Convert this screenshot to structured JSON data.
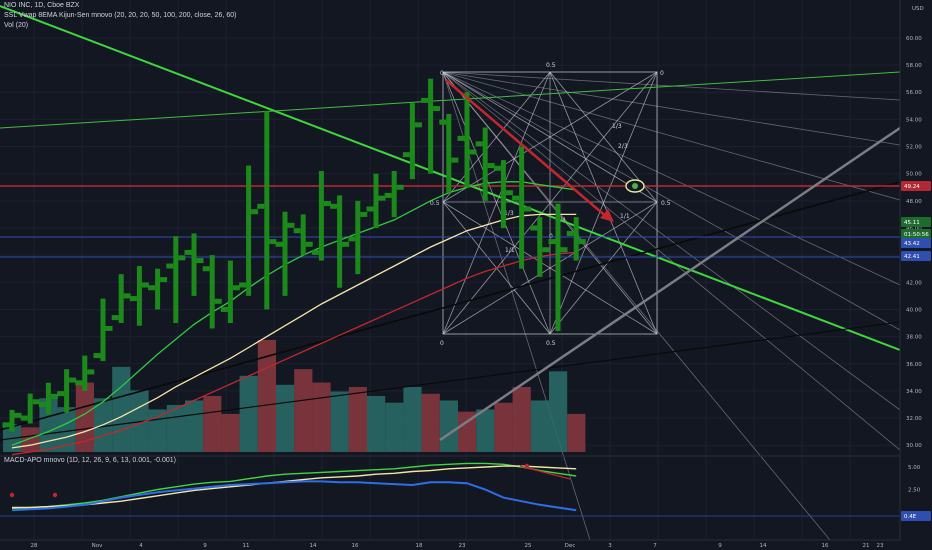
{
  "legends": {
    "symbol": "NIO INC, 1D, Cboe BZX",
    "indicators": "SSL Vwap 8EMA Kijun-Sen mnovo (20, 20, 20, 50, 100, 200, close, 26, 60)",
    "volume": "Vol (20)",
    "macd": "MACD-APO mnovo (1D, 12, 26, 9, 6, 13, 0.001, -0.001)"
  },
  "currency": "USD",
  "price_axis": {
    "range": [
      29.5,
      62.5
    ],
    "ticks": [
      "60.00",
      "58.00",
      "56.00",
      "54.00",
      "52.00",
      "50.00",
      "48.00",
      "46.00",
      "44.00",
      "42.00",
      "40.00",
      "38.00",
      "36.00",
      "34.00",
      "32.00",
      "30.00"
    ]
  },
  "macd_axis": {
    "ticks": [
      "5.00",
      "2.50"
    ]
  },
  "price_badges": [
    {
      "label": "49.24",
      "color": "#b22833"
    },
    {
      "label": "45.11",
      "color": "#1e6b2e"
    },
    {
      "label": "01:50:56",
      "color": "#1e6b2e"
    },
    {
      "label": "43.42",
      "color": "#2f4fb0"
    },
    {
      "label": "42.41",
      "color": "#2f4fb0"
    },
    {
      "label": "0.4E",
      "color": "#2f4fb0"
    }
  ],
  "date_axis": {
    "ticks": [
      "28",
      "Nov",
      "4",
      "9",
      "11",
      "14",
      "16",
      "18",
      "23",
      "25",
      "Dec",
      "3",
      "7",
      "9",
      "14",
      "16",
      "21",
      "23"
    ]
  },
  "fib_labels": [
    "0",
    "0.5",
    "0",
    "0.5",
    "0.5",
    "0",
    "0.5",
    "0",
    "1/3",
    "1/3",
    "2/3",
    "1/1",
    "1/1",
    "1/4"
  ],
  "chart_data": {
    "type": "candlestick",
    "ylim": [
      29.5,
      62.5
    ],
    "candles": [
      {
        "t": "Oct 27",
        "o": 31.5,
        "h": 32.6,
        "l": 31.0,
        "c": 32.2
      },
      {
        "t": "Oct 28",
        "o": 32.0,
        "h": 33.8,
        "l": 31.6,
        "c": 33.2
      },
      {
        "t": "Oct 29",
        "o": 33.0,
        "h": 34.6,
        "l": 32.3,
        "c": 33.6
      },
      {
        "t": "Oct 30",
        "o": 33.8,
        "h": 35.6,
        "l": 32.4,
        "c": 34.8
      },
      {
        "t": "Nov 2",
        "o": 34.6,
        "h": 36.6,
        "l": 34.0,
        "c": 35.4
      },
      {
        "t": "Nov 3",
        "o": 36.6,
        "h": 40.8,
        "l": 36.2,
        "c": 38.6
      },
      {
        "t": "Nov 4",
        "o": 39.4,
        "h": 42.6,
        "l": 39.0,
        "c": 41.0
      },
      {
        "t": "Nov 5",
        "o": 40.8,
        "h": 43.2,
        "l": 38.8,
        "c": 41.8
      },
      {
        "t": "Nov 6",
        "o": 41.6,
        "h": 43.0,
        "l": 40.0,
        "c": 42.2
      },
      {
        "t": "Nov 9",
        "o": 43.2,
        "h": 45.4,
        "l": 39.0,
        "c": 43.8
      },
      {
        "t": "Nov 10",
        "o": 44.2,
        "h": 45.6,
        "l": 41.0,
        "c": 43.6
      },
      {
        "t": "Nov 11",
        "o": 43.0,
        "h": 44.0,
        "l": 38.6,
        "c": 40.6
      },
      {
        "t": "Nov 12",
        "o": 40.0,
        "h": 43.6,
        "l": 39.0,
        "c": 41.6
      },
      {
        "t": "Nov 13",
        "o": 41.8,
        "h": 50.6,
        "l": 41.0,
        "c": 47.2
      },
      {
        "t": "Nov 16",
        "o": 47.6,
        "h": 54.6,
        "l": 40.0,
        "c": 45.0
      },
      {
        "t": "Nov 17",
        "o": 44.8,
        "h": 47.2,
        "l": 41.0,
        "c": 46.2
      },
      {
        "t": "Nov 18",
        "o": 45.8,
        "h": 47.0,
        "l": 44.0,
        "c": 44.8
      },
      {
        "t": "Nov 19",
        "o": 44.2,
        "h": 50.2,
        "l": 43.6,
        "c": 47.8
      },
      {
        "t": "Nov 20",
        "o": 47.6,
        "h": 48.4,
        "l": 41.6,
        "c": 44.8
      },
      {
        "t": "Nov 23",
        "o": 45.2,
        "h": 48.0,
        "l": 42.6,
        "c": 47.0
      },
      {
        "t": "Nov 24",
        "o": 47.4,
        "h": 50.0,
        "l": 46.0,
        "c": 48.2
      },
      {
        "t": "Nov 25",
        "o": 48.4,
        "h": 50.2,
        "l": 46.8,
        "c": 49.0
      },
      {
        "t": "Nov 27",
        "o": 51.4,
        "h": 55.2,
        "l": 49.6,
        "c": 53.6
      },
      {
        "t": "Nov 30",
        "o": 55.4,
        "h": 57.0,
        "l": 50.0,
        "c": 54.8
      },
      {
        "t": "Dec 1",
        "o": 53.8,
        "h": 54.4,
        "l": 48.6,
        "c": 51.0
      },
      {
        "t": "Dec 2",
        "o": 52.6,
        "h": 56.0,
        "l": 49.0,
        "c": 51.6
      },
      {
        "t": "Dec 3",
        "o": 52.2,
        "h": 53.4,
        "l": 48.0,
        "c": 50.6
      },
      {
        "t": "Dec 4",
        "o": 50.4,
        "h": 51.0,
        "l": 46.0,
        "c": 48.6
      },
      {
        "t": "Dec 7",
        "o": 48.2,
        "h": 52.0,
        "l": 43.0,
        "c": 47.4
      },
      {
        "t": "Dec 8",
        "o": 46.0,
        "h": 46.8,
        "l": 42.4,
        "c": 44.4
      },
      {
        "t": "Dec 9",
        "o": 45.0,
        "h": 47.8,
        "l": 38.4,
        "c": 44.4
      },
      {
        "t": "Dec 10",
        "o": 45.6,
        "h": 46.8,
        "l": 43.6,
        "c": 45.0
      }
    ],
    "volume": [
      {
        "v": 0.25,
        "up": true
      },
      {
        "v": 0.22,
        "up": false
      },
      {
        "v": 0.48,
        "up": true
      },
      {
        "v": 0.4,
        "up": true
      },
      {
        "v": 0.62,
        "up": false
      },
      {
        "v": 0.48,
        "up": true
      },
      {
        "v": 0.76,
        "up": true
      },
      {
        "v": 0.55,
        "up": true
      },
      {
        "v": 0.38,
        "up": true
      },
      {
        "v": 0.42,
        "up": true
      },
      {
        "v": 0.46,
        "up": true
      },
      {
        "v": 0.5,
        "up": false
      },
      {
        "v": 0.34,
        "up": false
      },
      {
        "v": 0.68,
        "up": true
      },
      {
        "v": 1.0,
        "up": false
      },
      {
        "v": 0.6,
        "up": true
      },
      {
        "v": 0.74,
        "up": false
      },
      {
        "v": 0.62,
        "up": false
      },
      {
        "v": 0.54,
        "up": true
      },
      {
        "v": 0.58,
        "up": false
      },
      {
        "v": 0.5,
        "up": true
      },
      {
        "v": 0.44,
        "up": true
      },
      {
        "v": 0.58,
        "up": true
      },
      {
        "v": 0.52,
        "up": false
      },
      {
        "v": 0.46,
        "up": true
      },
      {
        "v": 0.36,
        "up": false
      },
      {
        "v": 0.38,
        "up": true
      },
      {
        "v": 0.44,
        "up": false
      },
      {
        "v": 0.58,
        "up": false
      },
      {
        "v": 0.46,
        "up": true
      },
      {
        "v": 0.72,
        "up": true
      },
      {
        "v": 0.34,
        "up": false
      }
    ],
    "moving_averages": [
      {
        "color": "#2ecc40",
        "values": [
          30.0,
          30.5,
          31.0,
          31.6,
          32.3,
          33.2,
          34.3,
          35.5,
          36.7,
          37.8,
          38.9,
          39.8,
          40.6,
          41.6,
          42.5,
          43.3,
          44.0,
          44.6,
          45.1,
          45.6,
          46.1,
          46.6,
          47.3,
          48.0,
          48.6,
          49.0,
          49.3,
          49.4,
          49.4,
          49.2,
          49.0,
          48.8
        ]
      },
      {
        "color": "#f5e6a8",
        "values": [
          29.8,
          30.0,
          30.3,
          30.6,
          31.0,
          31.5,
          32.1,
          32.8,
          33.5,
          34.3,
          35.0,
          35.7,
          36.4,
          37.2,
          38.0,
          38.8,
          39.6,
          40.4,
          41.1,
          41.8,
          42.5,
          43.2,
          43.9,
          44.6,
          45.2,
          45.8,
          46.2,
          46.6,
          46.9,
          47.0,
          47.0,
          47.0
        ]
      },
      {
        "color": "#c0282e",
        "values": [
          29.3,
          29.5,
          29.7,
          30.0,
          30.3,
          30.7,
          31.1,
          31.6,
          32.1,
          32.7,
          33.3,
          33.9,
          34.5,
          35.1,
          35.7,
          36.3,
          36.9,
          37.5,
          38.1,
          38.7,
          39.3,
          39.9,
          40.5,
          41.1,
          41.7,
          42.3,
          42.8,
          43.2,
          43.6,
          43.9,
          44.1,
          44.2
        ]
      }
    ],
    "macd": {
      "line": [
        0.4,
        0.5,
        0.6,
        0.8,
        1.0,
        1.3,
        1.7,
        2.1,
        2.5,
        2.8,
        3.1,
        3.3,
        3.4,
        3.7,
        4.0,
        4.2,
        4.3,
        4.4,
        4.5,
        4.6,
        4.7,
        4.8,
        5.0,
        5.2,
        5.3,
        5.4,
        5.4,
        5.3,
        5.0,
        4.6,
        4.3,
        4.0
      ],
      "signal": [
        0.5,
        0.5,
        0.6,
        0.7,
        0.8,
        1.0,
        1.2,
        1.5,
        1.8,
        2.1,
        2.4,
        2.6,
        2.8,
        3.0,
        3.2,
        3.4,
        3.6,
        3.8,
        3.9,
        4.0,
        4.2,
        4.3,
        4.5,
        4.6,
        4.8,
        4.9,
        5.0,
        5.1,
        5.1,
        5.0,
        4.9,
        4.8
      ],
      "blue": [
        0.2,
        0.3,
        0.4,
        0.6,
        0.8,
        1.2,
        1.6,
        1.9,
        2.2,
        2.4,
        2.6,
        2.8,
        3.0,
        3.1,
        3.2,
        3.3,
        3.4,
        3.4,
        3.3,
        3.3,
        3.2,
        3.1,
        3.0,
        3.3,
        3.3,
        3.2,
        2.5,
        1.6,
        1.2,
        0.8,
        0.5,
        0.2
      ]
    }
  }
}
